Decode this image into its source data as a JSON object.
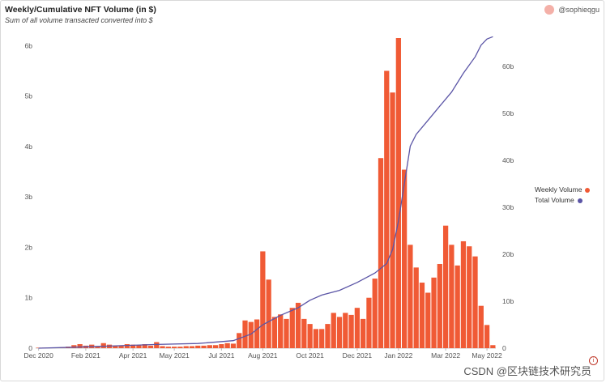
{
  "header": {
    "title": "Weekly/Cumulative NFT Volume (in $)",
    "subtitle": "Sum of all volume transacted converted into $",
    "author": "@sophieqgu"
  },
  "legend": {
    "weekly_label": "Weekly Volume",
    "total_label": "Total Volume"
  },
  "watermark": "CSDN @区块链技术研究员",
  "colors": {
    "bar": "#f05a35",
    "line": "#5b55a6",
    "axis_text": "#555555"
  },
  "chart_data": {
    "type": "bar",
    "title": "Weekly/Cumulative NFT Volume (in $)",
    "subtitle": "Sum of all volume transacted converted into $",
    "x_ticks": [
      "Dec 2020",
      "Feb 2021",
      "Apr 2021",
      "May 2021",
      "Jul 2021",
      "Aug 2021",
      "Oct 2021",
      "Dec 2021",
      "Jan 2022",
      "Mar 2022",
      "May 2022"
    ],
    "y_left": {
      "ticks": [
        0,
        1,
        2,
        3,
        4,
        5,
        6
      ],
      "tick_labels": [
        "0",
        "1b",
        "2b",
        "3b",
        "4b",
        "5b",
        "6b"
      ],
      "range": [
        0,
        6.15
      ]
    },
    "y_right": {
      "ticks": [
        0,
        10,
        20,
        30,
        40,
        50,
        60
      ],
      "tick_labels": [
        "0",
        "10b",
        "20b",
        "30b",
        "40b",
        "50b",
        "60b"
      ],
      "range": [
        0,
        66
      ]
    },
    "legend_position": "right",
    "grid": false,
    "series": [
      {
        "name": "Weekly Volume",
        "type": "bar",
        "axis": "left",
        "unit": "b",
        "values": [
          0.01,
          0.01,
          0.01,
          0.01,
          0.02,
          0.03,
          0.06,
          0.08,
          0.05,
          0.07,
          0.04,
          0.1,
          0.07,
          0.05,
          0.05,
          0.08,
          0.07,
          0.06,
          0.08,
          0.05,
          0.12,
          0.04,
          0.03,
          0.03,
          0.03,
          0.04,
          0.04,
          0.05,
          0.05,
          0.06,
          0.06,
          0.08,
          0.1,
          0.09,
          0.3,
          0.55,
          0.52,
          0.57,
          1.92,
          1.36,
          0.62,
          0.67,
          0.58,
          0.8,
          0.9,
          0.58,
          0.48,
          0.38,
          0.38,
          0.48,
          0.7,
          0.62,
          0.7,
          0.66,
          0.8,
          0.58,
          1.0,
          1.38,
          3.77,
          5.5,
          5.07,
          6.15,
          3.54,
          2.05,
          1.6,
          1.3,
          1.1,
          1.4,
          1.67,
          2.43,
          2.05,
          1.64,
          2.12,
          2.02,
          1.82,
          0.84,
          0.46,
          0.06
        ]
      },
      {
        "name": "Total Volume",
        "type": "line",
        "axis": "right",
        "unit": "b",
        "points": [
          [
            0,
            0
          ],
          [
            6,
            0.2
          ],
          [
            13,
            0.5
          ],
          [
            20,
            0.8
          ],
          [
            27,
            1.0
          ],
          [
            33,
            1.6
          ],
          [
            36,
            3.0
          ],
          [
            38,
            5.0
          ],
          [
            41,
            7.0
          ],
          [
            44,
            8.6
          ],
          [
            46,
            10.2
          ],
          [
            48,
            11.3
          ],
          [
            51,
            12.3
          ],
          [
            54,
            14.0
          ],
          [
            57,
            16.0
          ],
          [
            59,
            18.0
          ],
          [
            60,
            21.0
          ],
          [
            61,
            27.0
          ],
          [
            62,
            35.0
          ],
          [
            63,
            43.0
          ],
          [
            64,
            45.5
          ],
          [
            66,
            48.5
          ],
          [
            68,
            51.5
          ],
          [
            70,
            54.5
          ],
          [
            72,
            58.5
          ],
          [
            74,
            62.0
          ],
          [
            75,
            64.5
          ],
          [
            76,
            65.8
          ],
          [
            77,
            66.3
          ]
        ]
      }
    ]
  }
}
